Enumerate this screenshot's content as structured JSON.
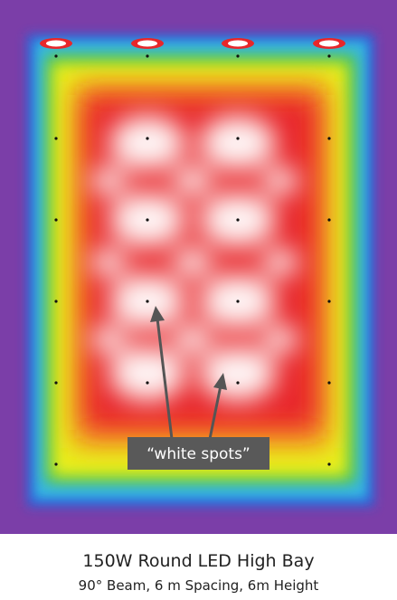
{
  "annotation": {
    "label": "“white spots”"
  },
  "caption": {
    "title": "150W Round LED High Bay",
    "subtitle": "90° Beam, 6 m Spacing, 6m Height"
  }
}
